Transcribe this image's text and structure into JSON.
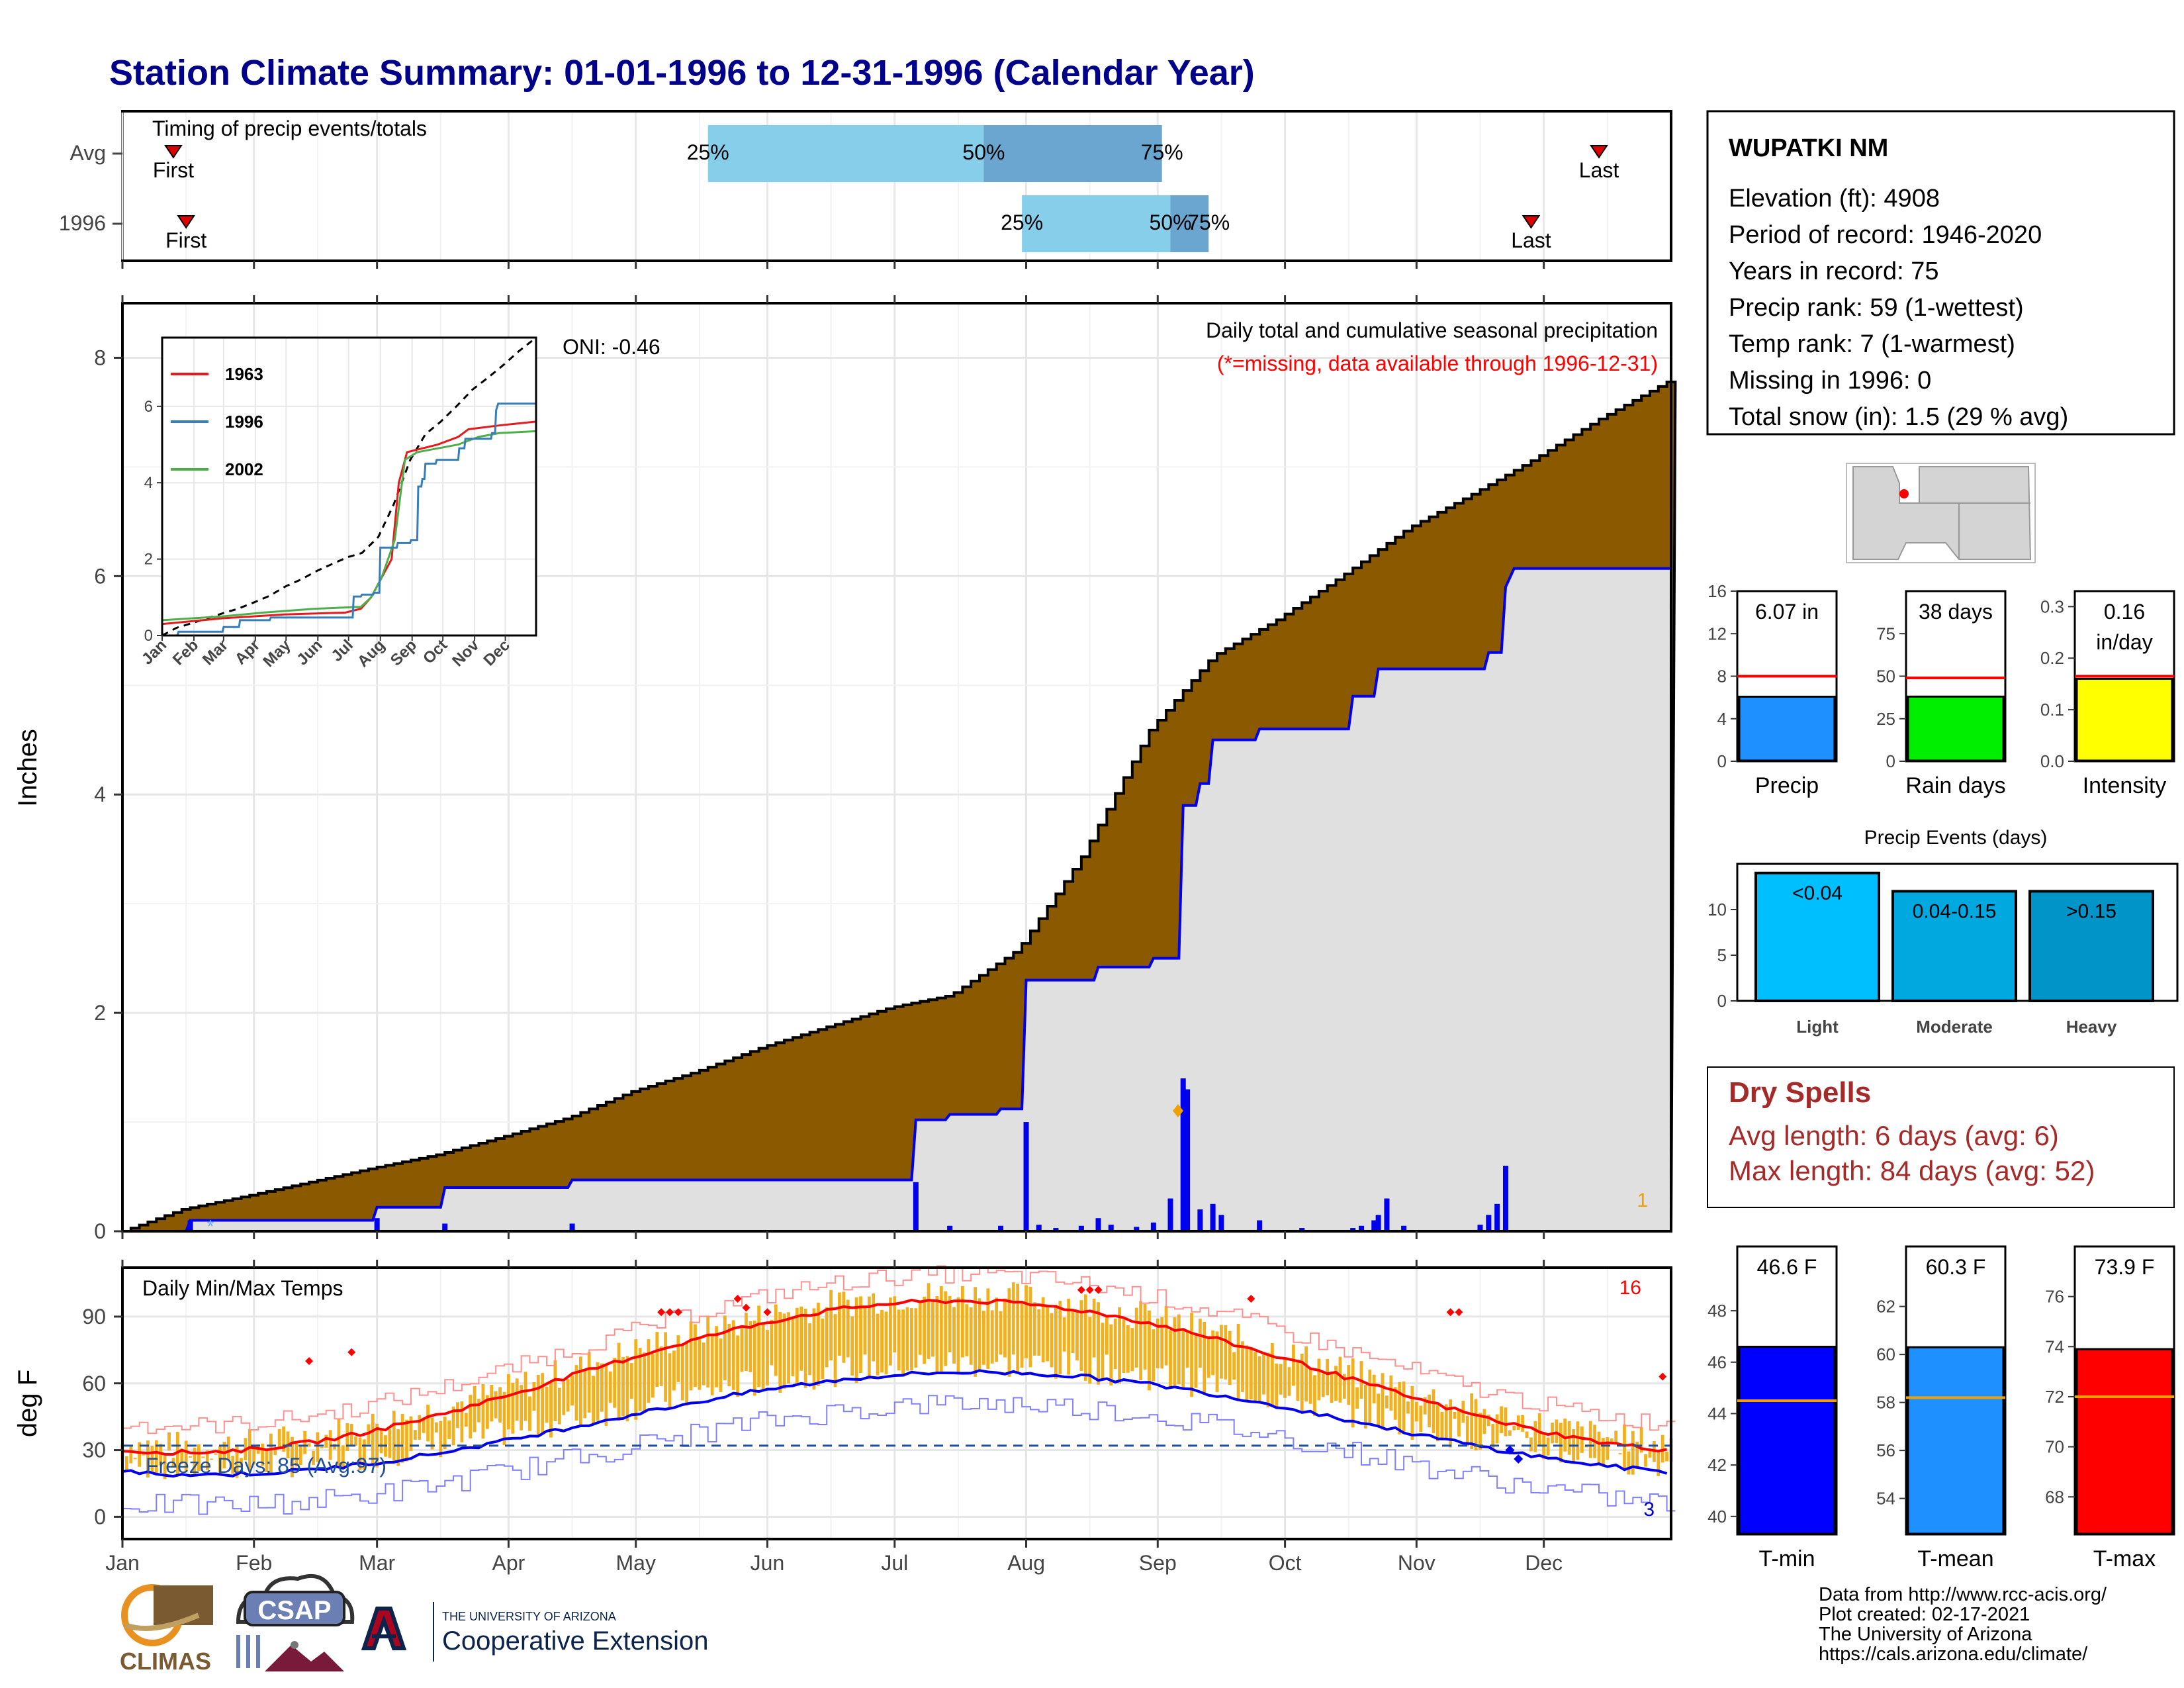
{
  "title": "Station Climate Summary: 01-01-1996 to 12-31-1996 (Calendar Year)",
  "months": [
    "Jan",
    "Feb",
    "Mar",
    "Apr",
    "May",
    "Jun",
    "Jul",
    "Aug",
    "Sep",
    "Oct",
    "Nov",
    "Dec"
  ],
  "timing": {
    "label": "Timing of precip events/totals",
    "rows": [
      {
        "name": "Avg",
        "first_doy": 13,
        "last_doy": 349,
        "p25_doy": 139,
        "p50_doy": 204,
        "p75_doy": 246
      },
      {
        "name": "1996",
        "first_doy": 16,
        "last_doy": 333,
        "p25_doy": 213,
        "p50_doy": 248,
        "p75_doy": 257
      }
    ],
    "first_label": "First",
    "last_label": "Last",
    "p25_label": "25%",
    "p50_label": "50%",
    "p75_label": "75%"
  },
  "precip": {
    "ylabel": "Inches",
    "yticks": [
      0,
      2,
      4,
      6,
      8
    ],
    "ylim": [
      0,
      8.5
    ],
    "title": "Daily total and cumulative seasonal precipitation",
    "subtitle": "(*=missing, data available through 1996-12-31)",
    "oni": "ONI: -0.46",
    "corner_count": "1",
    "avg_cumulative": [
      [
        1,
        0
      ],
      [
        15,
        0.2
      ],
      [
        31,
        0.33
      ],
      [
        45,
        0.45
      ],
      [
        60,
        0.58
      ],
      [
        75,
        0.7
      ],
      [
        91,
        0.87
      ],
      [
        106,
        1.04
      ],
      [
        121,
        1.28
      ],
      [
        136,
        1.46
      ],
      [
        152,
        1.69
      ],
      [
        166,
        1.86
      ],
      [
        182,
        2.05
      ],
      [
        196,
        2.16
      ],
      [
        212,
        2.58
      ],
      [
        227,
        3.43
      ],
      [
        243,
        4.59
      ],
      [
        258,
        5.27
      ],
      [
        273,
        5.6
      ],
      [
        289,
        6.02
      ],
      [
        304,
        6.44
      ],
      [
        319,
        6.75
      ],
      [
        334,
        7.08
      ],
      [
        349,
        7.44
      ],
      [
        366,
        7.8
      ]
    ],
    "cumulative_1996": [
      [
        1,
        0
      ],
      [
        16,
        0
      ],
      [
        17,
        0.1
      ],
      [
        60,
        0.1
      ],
      [
        61,
        0.22
      ],
      [
        76,
        0.22
      ],
      [
        77,
        0.4
      ],
      [
        106,
        0.4
      ],
      [
        107,
        0.47
      ],
      [
        187,
        0.47
      ],
      [
        188,
        1.02
      ],
      [
        195,
        1.02
      ],
      [
        196,
        1.07
      ],
      [
        207,
        1.07
      ],
      [
        208,
        1.12
      ],
      [
        213,
        1.12
      ],
      [
        214,
        2.3
      ],
      [
        230,
        2.3
      ],
      [
        231,
        2.42
      ],
      [
        243,
        2.42
      ],
      [
        244,
        2.5
      ],
      [
        250,
        2.5
      ],
      [
        251,
        3.9
      ],
      [
        254,
        3.9
      ],
      [
        255,
        4.1
      ],
      [
        257,
        4.1
      ],
      [
        258,
        4.5
      ],
      [
        268,
        4.5
      ],
      [
        269,
        4.6
      ],
      [
        290,
        4.6
      ],
      [
        291,
        4.9
      ],
      [
        296,
        4.9
      ],
      [
        297,
        5.15
      ],
      [
        322,
        5.15
      ],
      [
        323,
        5.3
      ],
      [
        326,
        5.3
      ],
      [
        327,
        5.9
      ],
      [
        329,
        6.07
      ],
      [
        366,
        6.07
      ]
    ],
    "daily_bars": [
      [
        17,
        0.1
      ],
      [
        61,
        0.12
      ],
      [
        77,
        0.07
      ],
      [
        107,
        0.07
      ],
      [
        188,
        0.45
      ],
      [
        196,
        0.05
      ],
      [
        208,
        0.05
      ],
      [
        214,
        1.0
      ],
      [
        217,
        0.06
      ],
      [
        221,
        0.03
      ],
      [
        227,
        0.05
      ],
      [
        231,
        0.12
      ],
      [
        234,
        0.06
      ],
      [
        240,
        0.04
      ],
      [
        244,
        0.08
      ],
      [
        248,
        0.3
      ],
      [
        251,
        1.4
      ],
      [
        252,
        1.3
      ],
      [
        255,
        0.2
      ],
      [
        258,
        0.25
      ],
      [
        260,
        0.15
      ],
      [
        269,
        0.1
      ],
      [
        279,
        0.03
      ],
      [
        291,
        0.03
      ],
      [
        293,
        0.05
      ],
      [
        296,
        0.1
      ],
      [
        297,
        0.15
      ],
      [
        299,
        0.3
      ],
      [
        303,
        0.05
      ],
      [
        321,
        0.06
      ],
      [
        323,
        0.15
      ],
      [
        325,
        0.25
      ],
      [
        327,
        0.6
      ]
    ],
    "inset": {
      "yticks": [
        0,
        2,
        4,
        6
      ],
      "ylim": [
        0,
        7.8
      ],
      "legend": [
        "1963",
        "1996",
        "2002"
      ],
      "colors": [
        "#e41a1c",
        "#377eb8",
        "#4daf4a"
      ]
    }
  },
  "station": {
    "name": "WUPATKI NM",
    "lines": [
      "Elevation (ft): 4908",
      "Period of record: 1946-2020",
      "Years in record: 75",
      "Precip rank: 59 (1-wettest)",
      "Temp rank: 7 (1-warmest)",
      "Missing in 1996: 0",
      "Total snow (in): 1.5 (29 % avg)"
    ]
  },
  "summary_bars": [
    {
      "xlabel": "Precip",
      "value_label": "6.07 in",
      "value": 6.07,
      "avg": 8.0,
      "yticks": [
        0,
        4,
        8,
        12,
        16
      ],
      "ylim": [
        0,
        16
      ],
      "color": "#1e90ff"
    },
    {
      "xlabel": "Rain days",
      "value_label": "38 days",
      "value": 38,
      "avg": 49,
      "yticks": [
        0,
        25,
        50,
        75
      ],
      "ylim": [
        0,
        100
      ],
      "color": "#00ee00"
    },
    {
      "xlabel": "Intensity",
      "value_label": "0.16 in/day",
      "value": 0.16,
      "avg": 0.165,
      "yticks": [
        0.0,
        0.1,
        0.2,
        0.3
      ],
      "ylim": [
        0,
        0.33
      ],
      "color": "#ffff00"
    }
  ],
  "events": {
    "title": "Precip Events (days)",
    "yticks": [
      0,
      5,
      10
    ],
    "ylim": [
      0,
      15
    ],
    "categories": [
      "Light",
      "Moderate",
      "Heavy"
    ],
    "labels": [
      "<0.04",
      "0.04-0.15",
      ">0.15"
    ],
    "values": [
      14,
      12,
      12
    ],
    "colors": [
      "#00bfff",
      "#00a8e0",
      "#0094c8"
    ]
  },
  "dry_spells": {
    "title": "Dry Spells",
    "avg_line": "Avg length: 6 days (avg: 6)",
    "max_line": "Max length: 84 days (avg: 52)"
  },
  "temps": {
    "ylabel": "deg F",
    "title": "Daily Min/Max Temps",
    "yticks": [
      0,
      30,
      60,
      90
    ],
    "ylim": [
      -10,
      112
    ],
    "freeze": "Freeze Days: 85 (Avg:97)",
    "hot_count": "16",
    "cold_count": "3",
    "freeze_line": 32
  },
  "temp_bars": [
    {
      "xlabel": "T-min",
      "value_label": "46.6 F",
      "value": 46.6,
      "avg": 44.5,
      "yticks": [
        40,
        42,
        44,
        46,
        48
      ],
      "ylim": [
        39.3,
        50.5
      ],
      "color": "#0000ff"
    },
    {
      "xlabel": "T-mean",
      "value_label": "60.3 F",
      "value": 60.3,
      "avg": 58.2,
      "yticks": [
        54,
        56,
        58,
        60,
        62
      ],
      "ylim": [
        52.5,
        64.5
      ],
      "color": "#1e90ff"
    },
    {
      "xlabel": "T-max",
      "value_label": "73.9 F",
      "value": 73.9,
      "avg": 72.0,
      "yticks": [
        68,
        70,
        72,
        74,
        76
      ],
      "ylim": [
        66.5,
        78
      ],
      "color": "#ff0000"
    }
  ],
  "footer": {
    "lines": [
      "Data from http://www.rcc-acis.org/",
      "Plot created: 02-17-2021",
      "The University of Arizona",
      "https://cals.arizona.edu/climate/"
    ],
    "logo_climas": "CLIMAS",
    "logo_csap": "CSAP",
    "ua_small": "THE UNIVERSITY OF ARIZONA",
    "ua_big": "Cooperative Extension"
  },
  "colors": {
    "title": "#00008b",
    "brown": "#8b5a00",
    "grey_fill": "#e0e0e0",
    "dry_red": "#a52a2a",
    "orange": "#f0b020"
  }
}
